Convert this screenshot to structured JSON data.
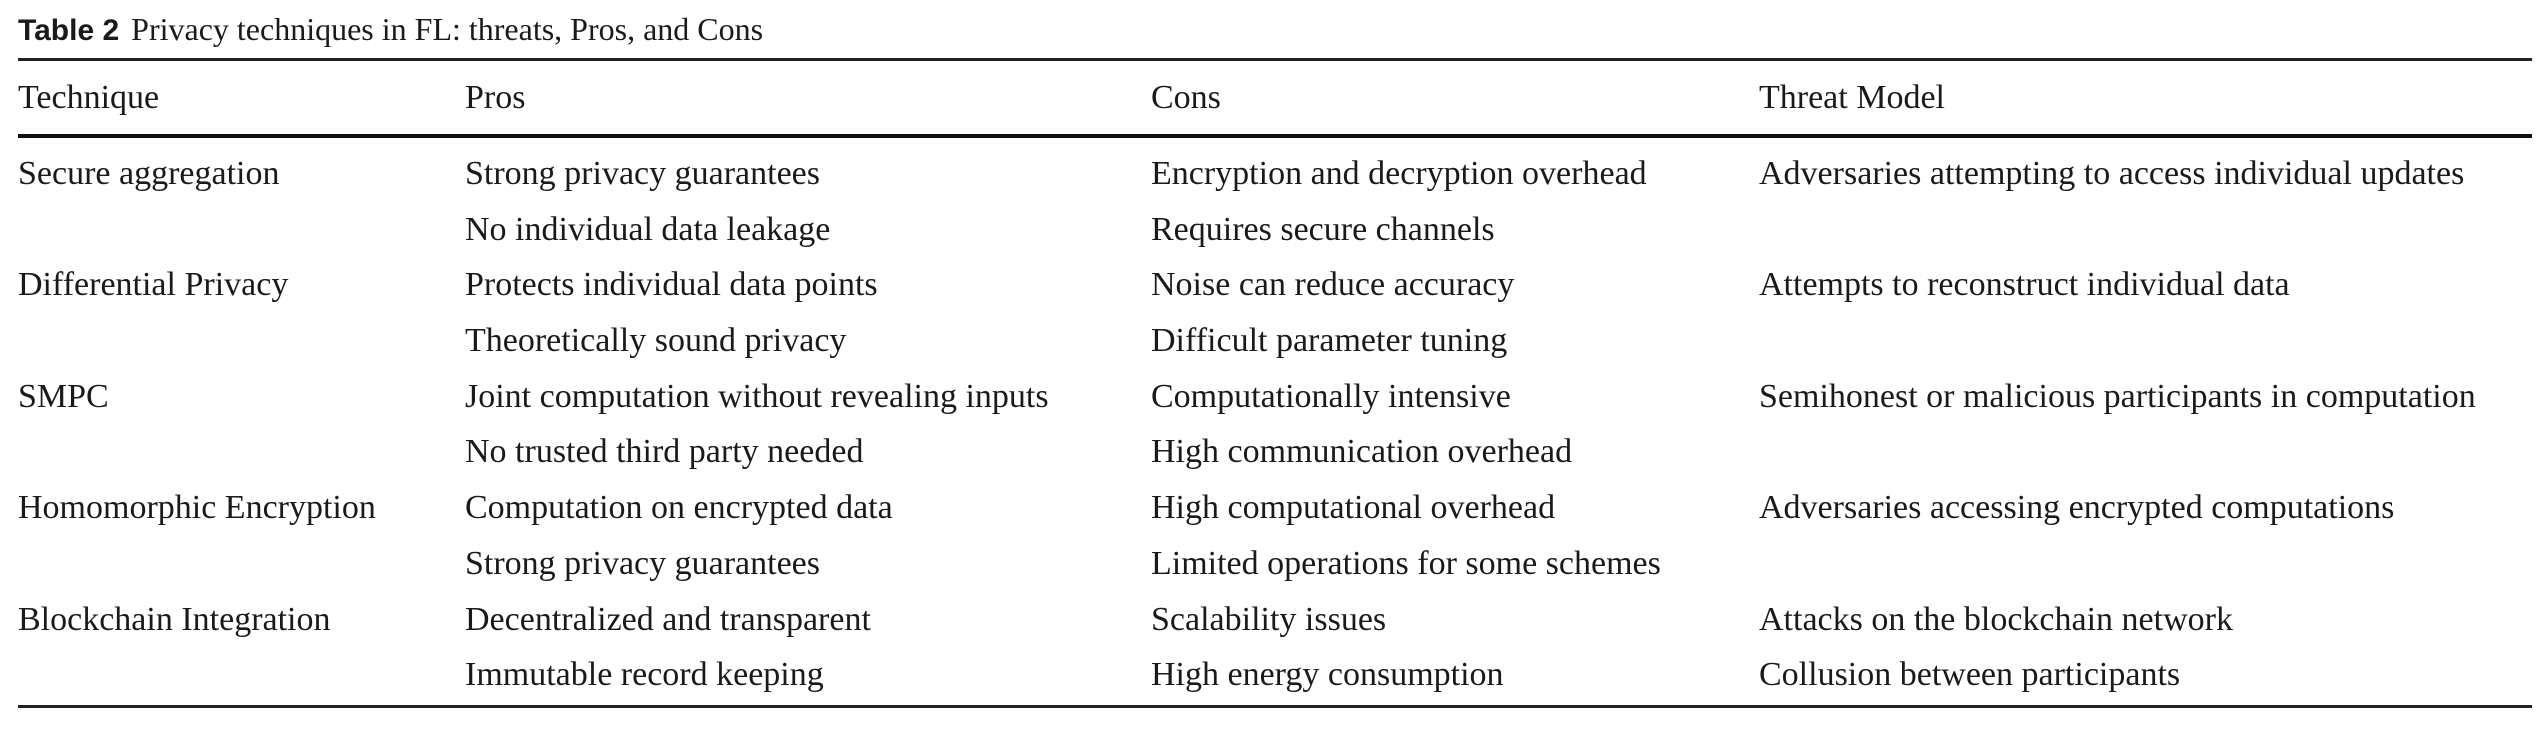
{
  "table": {
    "label": "Table 2",
    "caption": "Privacy techniques in FL: threats, Pros, and Cons",
    "headers": [
      "Technique",
      "Pros",
      "Cons",
      "Threat Model"
    ],
    "rows": [
      [
        "Secure aggregation",
        "Strong privacy guarantees",
        "Encryption and decryption overhead",
        "Adversaries attempting to access individual updates"
      ],
      [
        "",
        "No individual data leakage",
        "Requires secure channels",
        ""
      ],
      [
        "Differential Privacy",
        "Protects individual data points",
        "Noise can reduce accuracy",
        "Attempts to reconstruct individual data"
      ],
      [
        "",
        "Theoretically sound privacy",
        "Difficult parameter tuning",
        ""
      ],
      [
        "SMPC",
        "Joint computation without revealing inputs",
        "Computationally intensive",
        "Semihonest or malicious participants in computation"
      ],
      [
        "",
        "No trusted third party needed",
        "High communication overhead",
        ""
      ],
      [
        "Homomorphic Encryption",
        "Computation on encrypted data",
        "High computational overhead",
        "Adversaries accessing encrypted computations"
      ],
      [
        "",
        "Strong privacy guarantees",
        "Limited operations for some schemes",
        ""
      ],
      [
        "Blockchain Integration",
        "Decentralized and transparent",
        "Scalability issues",
        "Attacks on the blockchain network"
      ],
      [
        "",
        "Immutable record keeping",
        "High energy consumption",
        "Collusion between participants"
      ]
    ]
  }
}
